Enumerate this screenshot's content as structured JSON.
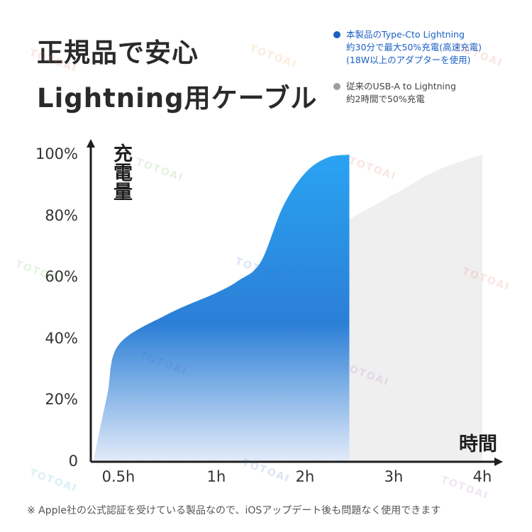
{
  "header": {
    "title_line1": "正規品で安心",
    "title_line2": "Lightning用ケーブル"
  },
  "legend": [
    {
      "lines": [
        "本製品のType-Cto Lightning",
        "約30分で最大50%充電(高速充電)",
        "(18W以上のアダプターを使用)"
      ],
      "color": "#1a5fc4"
    },
    {
      "lines": [
        "従来のUSB-A to Lightning",
        "約2時間で50%充電"
      ],
      "color": "#9e9e9e"
    }
  ],
  "footnote": "※ Apple社の公式認証を受けている製品なので、iOSアップデート後も問題なく使用できます",
  "watermark": "TOTOAI",
  "colors": {
    "blue_top": "#2a9df0",
    "blue_mid": "#2b7fd6",
    "blue_bottom": "#dfe8f8",
    "gray_fill": "#efefef",
    "axis": "#1f1f1f"
  },
  "chart_data": {
    "type": "area",
    "ylabel": "充電量",
    "xlabel": "時間",
    "y_ticks": [
      "0",
      "20%",
      "40%",
      "60%",
      "80%",
      "100%"
    ],
    "x_ticks": [
      "0.5h",
      "1h",
      "2h",
      "3h",
      "4h"
    ],
    "ylim": [
      0,
      100
    ],
    "series": [
      {
        "name": "本製品のType-Cto Lightning",
        "color": "#2a9df0",
        "points": [
          [
            0.05,
            0
          ],
          [
            0.1,
            5
          ],
          [
            0.3,
            22
          ],
          [
            0.5,
            38
          ],
          [
            0.75,
            48
          ],
          [
            1.0,
            55
          ],
          [
            1.25,
            59
          ],
          [
            1.5,
            65
          ],
          [
            1.75,
            83
          ],
          [
            2.0,
            94
          ],
          [
            2.25,
            99
          ],
          [
            2.5,
            100
          ]
        ]
      },
      {
        "name": "従来のUSB-A to Lightning",
        "color": "#efefef",
        "points": [
          [
            2.5,
            79
          ],
          [
            3.0,
            87
          ],
          [
            3.5,
            95
          ],
          [
            4.0,
            100
          ]
        ]
      }
    ]
  }
}
